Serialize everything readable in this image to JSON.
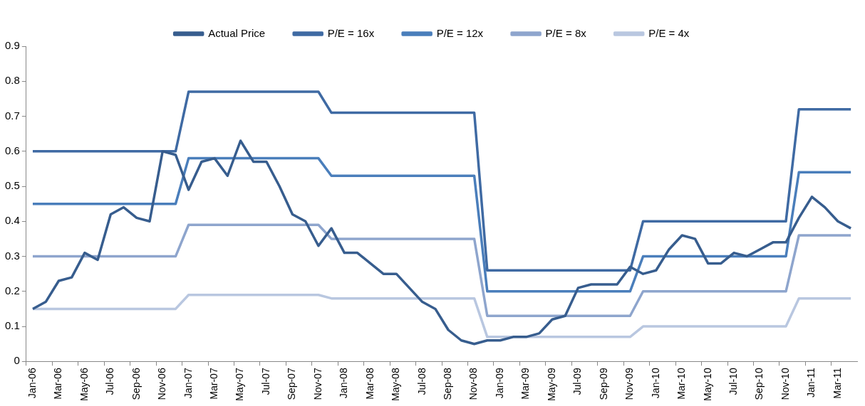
{
  "chart_data": {
    "type": "line",
    "categories": [
      "Jan-06",
      null,
      "Mar-06",
      null,
      "May-06",
      null,
      "Jul-06",
      null,
      "Sep-06",
      null,
      "Nov-06",
      null,
      "Jan-07",
      null,
      "Mar-07",
      null,
      "May-07",
      null,
      "Jul-07",
      null,
      "Sep-07",
      null,
      "Nov-07",
      null,
      "Jan-08",
      null,
      "Mar-08",
      null,
      "May-08",
      null,
      "Jul-08",
      null,
      "Sep-08",
      null,
      "Nov-08",
      null,
      "Jan-09",
      null,
      "Mar-09",
      null,
      "May-09",
      null,
      "Jul-09",
      null,
      "Sep-09",
      null,
      "Nov-09",
      null,
      "Jan-10",
      null,
      "Mar-10",
      null,
      "May-10",
      null,
      "Jul-10",
      null,
      "Sep-10",
      null,
      "Nov-10",
      null,
      "Jan-11",
      null,
      "Mar-11",
      null
    ],
    "series": [
      {
        "name": "Actual Price",
        "color": "#375d8e",
        "values": [
          0.15,
          0.17,
          0.23,
          0.24,
          0.31,
          0.29,
          0.42,
          0.44,
          0.41,
          0.4,
          0.6,
          0.59,
          0.49,
          0.57,
          0.58,
          0.53,
          0.63,
          0.57,
          0.57,
          0.5,
          0.42,
          0.4,
          0.33,
          0.38,
          0.31,
          0.31,
          0.28,
          0.25,
          0.25,
          0.21,
          0.17,
          0.15,
          0.09,
          0.06,
          0.05,
          0.06,
          0.06,
          0.07,
          0.07,
          0.08,
          0.12,
          0.13,
          0.21,
          0.22,
          0.22,
          0.22,
          0.27,
          0.25,
          0.26,
          0.32,
          0.36,
          0.35,
          0.28,
          0.28,
          0.31,
          0.3,
          0.32,
          0.34,
          0.34,
          0.41,
          0.47,
          0.44,
          0.4,
          0.38
        ]
      },
      {
        "name": "P/E = 16x",
        "color": "#3f6aa3",
        "values": [
          0.6,
          0.6,
          0.6,
          0.6,
          0.6,
          0.6,
          0.6,
          0.6,
          0.6,
          0.6,
          0.6,
          0.6,
          0.77,
          0.77,
          0.77,
          0.77,
          0.77,
          0.77,
          0.77,
          0.77,
          0.77,
          0.77,
          0.77,
          0.71,
          0.71,
          0.71,
          0.71,
          0.71,
          0.71,
          0.71,
          0.71,
          0.71,
          0.71,
          0.71,
          0.71,
          0.26,
          0.26,
          0.26,
          0.26,
          0.26,
          0.26,
          0.26,
          0.26,
          0.26,
          0.26,
          0.26,
          0.26,
          0.4,
          0.4,
          0.4,
          0.4,
          0.4,
          0.4,
          0.4,
          0.4,
          0.4,
          0.4,
          0.4,
          0.4,
          0.72,
          0.72,
          0.72,
          0.72,
          0.72
        ]
      },
      {
        "name": "P/E = 12x",
        "color": "#4a7ebb",
        "values": [
          0.45,
          0.45,
          0.45,
          0.45,
          0.45,
          0.45,
          0.45,
          0.45,
          0.45,
          0.45,
          0.45,
          0.45,
          0.58,
          0.58,
          0.58,
          0.58,
          0.58,
          0.58,
          0.58,
          0.58,
          0.58,
          0.58,
          0.58,
          0.53,
          0.53,
          0.53,
          0.53,
          0.53,
          0.53,
          0.53,
          0.53,
          0.53,
          0.53,
          0.53,
          0.53,
          0.2,
          0.2,
          0.2,
          0.2,
          0.2,
          0.2,
          0.2,
          0.2,
          0.2,
          0.2,
          0.2,
          0.2,
          0.3,
          0.3,
          0.3,
          0.3,
          0.3,
          0.3,
          0.3,
          0.3,
          0.3,
          0.3,
          0.3,
          0.3,
          0.54,
          0.54,
          0.54,
          0.54,
          0.54
        ]
      },
      {
        "name": "P/E = 8x",
        "color": "#8ea5cd",
        "values": [
          0.3,
          0.3,
          0.3,
          0.3,
          0.3,
          0.3,
          0.3,
          0.3,
          0.3,
          0.3,
          0.3,
          0.3,
          0.39,
          0.39,
          0.39,
          0.39,
          0.39,
          0.39,
          0.39,
          0.39,
          0.39,
          0.39,
          0.39,
          0.35,
          0.35,
          0.35,
          0.35,
          0.35,
          0.35,
          0.35,
          0.35,
          0.35,
          0.35,
          0.35,
          0.35,
          0.13,
          0.13,
          0.13,
          0.13,
          0.13,
          0.13,
          0.13,
          0.13,
          0.13,
          0.13,
          0.13,
          0.13,
          0.2,
          0.2,
          0.2,
          0.2,
          0.2,
          0.2,
          0.2,
          0.2,
          0.2,
          0.2,
          0.2,
          0.2,
          0.36,
          0.36,
          0.36,
          0.36,
          0.36
        ]
      },
      {
        "name": "P/E = 4x",
        "color": "#b9c7e0",
        "values": [
          0.15,
          0.15,
          0.15,
          0.15,
          0.15,
          0.15,
          0.15,
          0.15,
          0.15,
          0.15,
          0.15,
          0.15,
          0.19,
          0.19,
          0.19,
          0.19,
          0.19,
          0.19,
          0.19,
          0.19,
          0.19,
          0.19,
          0.19,
          0.18,
          0.18,
          0.18,
          0.18,
          0.18,
          0.18,
          0.18,
          0.18,
          0.18,
          0.18,
          0.18,
          0.18,
          0.07,
          0.07,
          0.07,
          0.07,
          0.07,
          0.07,
          0.07,
          0.07,
          0.07,
          0.07,
          0.07,
          0.07,
          0.1,
          0.1,
          0.1,
          0.1,
          0.1,
          0.1,
          0.1,
          0.1,
          0.1,
          0.1,
          0.1,
          0.1,
          0.18,
          0.18,
          0.18,
          0.18,
          0.18
        ]
      }
    ],
    "ylim": [
      0,
      0.9
    ],
    "yticks": [
      0,
      0.1,
      0.2,
      0.3,
      0.4,
      0.5,
      0.6,
      0.7,
      0.8,
      0.9
    ],
    "legend": "top",
    "marker": "none",
    "line_style": "solid"
  }
}
